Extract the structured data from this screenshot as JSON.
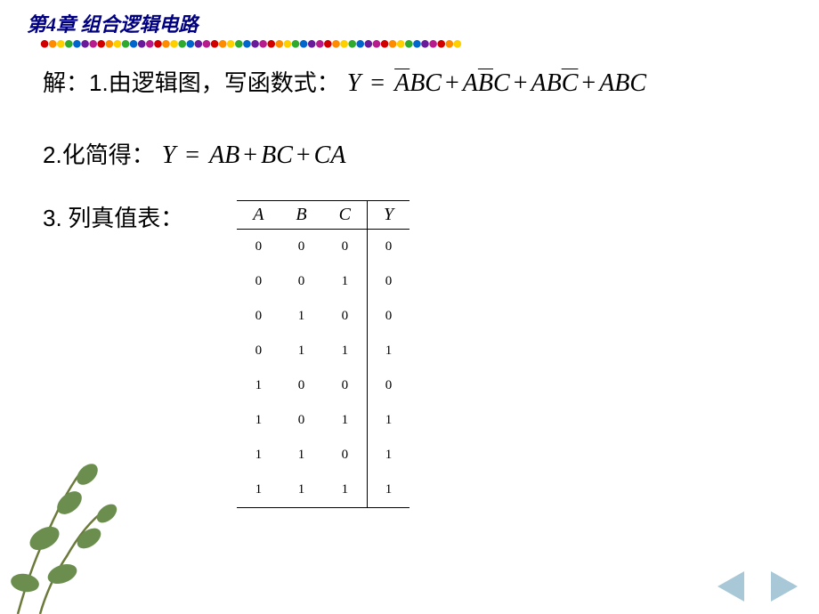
{
  "header": {
    "chapter_title": "第4章  组合逻辑电路",
    "dot_colors": [
      "#d00000",
      "#ff8c00",
      "#ffd000",
      "#2faa2f",
      "#0066cc",
      "#6a1b9a",
      "#b71c8c"
    ]
  },
  "step1": {
    "prefix_cn": "解：",
    "num": "1.",
    "text_cn": "由逻辑图，写函数式：",
    "eq_lhs": "Y",
    "eq_terms": [
      {
        "a_bar": true,
        "b_bar": false,
        "c_bar": false
      },
      {
        "a_bar": false,
        "b_bar": true,
        "c_bar": false
      },
      {
        "a_bar": false,
        "b_bar": false,
        "c_bar": true
      },
      {
        "a_bar": false,
        "b_bar": false,
        "c_bar": false
      }
    ]
  },
  "step2": {
    "num": "2.",
    "text_cn": "化简得：",
    "eq_lhs": "Y",
    "eq_rhs_terms": [
      "AB",
      "BC",
      "CA"
    ]
  },
  "step3": {
    "num": "3.",
    "text_cn": "列真值表：",
    "truth_table": {
      "columns": [
        "A",
        "B",
        "C",
        "Y"
      ],
      "rows": [
        [
          0,
          0,
          0,
          0
        ],
        [
          0,
          0,
          1,
          0
        ],
        [
          0,
          1,
          0,
          0
        ],
        [
          0,
          1,
          1,
          1
        ],
        [
          1,
          0,
          0,
          0
        ],
        [
          1,
          0,
          1,
          1
        ],
        [
          1,
          1,
          0,
          1
        ],
        [
          1,
          1,
          1,
          1
        ]
      ]
    }
  },
  "nav": {
    "prev_color": "#a8c8d8",
    "next_color": "#a8c8d8"
  },
  "plant": {
    "leaf_color": "#6b8e4e",
    "stem_color": "#6b7a3a"
  }
}
